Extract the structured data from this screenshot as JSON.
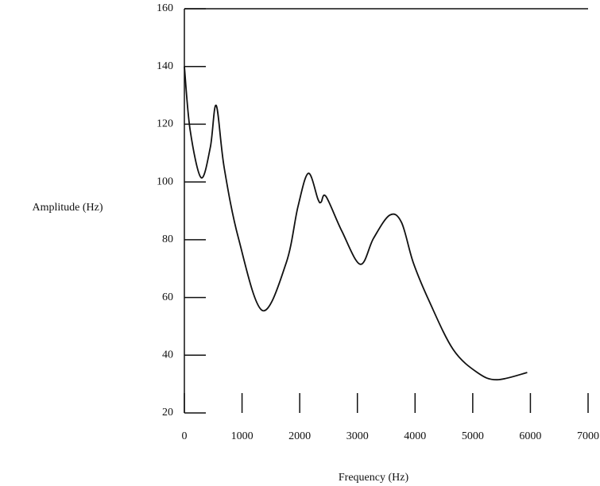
{
  "chart_data": {
    "type": "line",
    "x_label": "Frequency (Hz)",
    "y_label": "Amplitude  (Hz)",
    "xlim": [
      0,
      7000
    ],
    "xticks": [
      0,
      1000,
      2000,
      3000,
      4000,
      5000,
      6000,
      7000
    ],
    "ylim": [
      20,
      160
    ],
    "yticks": [
      20,
      40,
      60,
      80,
      100,
      120,
      140,
      160
    ],
    "x": [
      0,
      100,
      290,
      450,
      552,
      690,
      938,
      1350,
      1766,
      1970,
      2150,
      2317,
      2370,
      2455,
      2730,
      3050,
      3280,
      3560,
      3765,
      3970,
      4250,
      4660,
      5080,
      5420,
      5945
    ],
    "series": [
      {
        "color": "#111111",
        "values": [
          140,
          118,
          101.5,
          112,
          126.5,
          105,
          80.5,
          55.5,
          72,
          91.5,
          103,
          94,
          93,
          95,
          83,
          71.5,
          80.5,
          88.5,
          86,
          72,
          58.5,
          42,
          34,
          31.5,
          34
        ]
      }
    ]
  }
}
